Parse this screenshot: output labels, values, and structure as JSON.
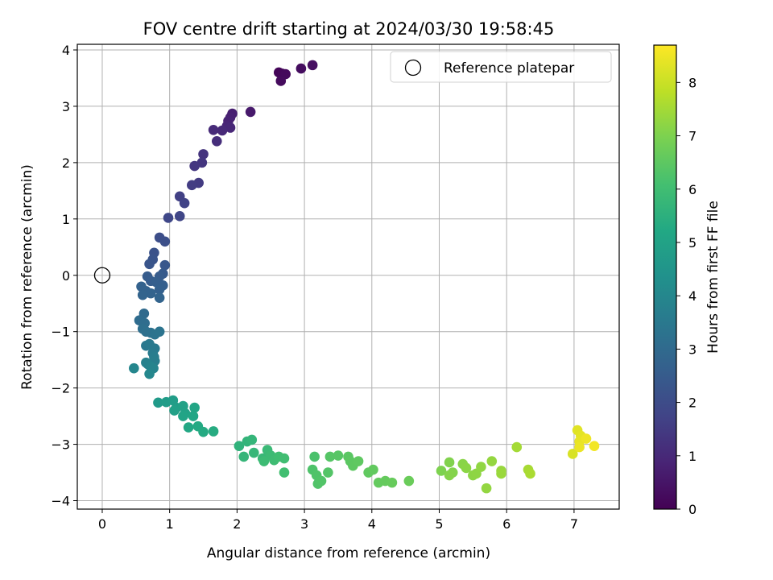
{
  "chart_data": {
    "type": "scatter",
    "title": "FOV centre drift starting at 2024/03/30 19:58:45",
    "xlabel": "Angular distance from reference (arcmin)",
    "ylabel": "Rotation from reference (arcmin)",
    "xlim": [
      -0.37,
      7.67
    ],
    "ylim": [
      -4.15,
      4.1
    ],
    "xticks": [
      0,
      1,
      2,
      3,
      4,
      5,
      6,
      7
    ],
    "yticks": [
      -4,
      -3,
      -2,
      -1,
      0,
      1,
      2,
      3,
      4
    ],
    "grid": true,
    "legend": {
      "label": "Reference platepar",
      "position": "top-right",
      "marker": "open-circle"
    },
    "reference_point": {
      "x": 0,
      "y": 0
    },
    "colorbar": {
      "label": "Hours from first FF file",
      "colormap": "viridis",
      "range": [
        0,
        8.7
      ],
      "ticks": [
        0,
        1,
        2,
        3,
        4,
        5,
        6,
        7,
        8
      ]
    },
    "points": [
      [
        2.62,
        3.6,
        0.1
      ],
      [
        2.67,
        3.58,
        0.15
      ],
      [
        2.72,
        3.57,
        0.2
      ],
      [
        2.65,
        3.45,
        0.25
      ],
      [
        2.95,
        3.67,
        0.3
      ],
      [
        3.12,
        3.73,
        0.35
      ],
      [
        2.2,
        2.9,
        0.6
      ],
      [
        1.93,
        2.87,
        0.75
      ],
      [
        1.9,
        2.8,
        0.8
      ],
      [
        1.87,
        2.74,
        0.85
      ],
      [
        1.85,
        2.65,
        0.9
      ],
      [
        1.9,
        2.62,
        0.95
      ],
      [
        1.78,
        2.57,
        1.0
      ],
      [
        1.65,
        2.58,
        1.05
      ],
      [
        1.7,
        2.38,
        1.15
      ],
      [
        1.5,
        2.15,
        1.3
      ],
      [
        1.48,
        2.0,
        1.35
      ],
      [
        1.37,
        1.94,
        1.4
      ],
      [
        1.43,
        1.64,
        1.5
      ],
      [
        1.33,
        1.6,
        1.55
      ],
      [
        1.15,
        1.4,
        1.65
      ],
      [
        1.22,
        1.28,
        1.7
      ],
      [
        1.15,
        1.05,
        1.8
      ],
      [
        0.98,
        1.02,
        1.85
      ],
      [
        0.85,
        0.67,
        2.05
      ],
      [
        0.93,
        0.6,
        2.1
      ],
      [
        0.77,
        0.4,
        2.2
      ],
      [
        0.75,
        0.28,
        2.25
      ],
      [
        0.7,
        0.2,
        2.3
      ],
      [
        0.93,
        0.18,
        2.35
      ],
      [
        0.9,
        0.03,
        2.45
      ],
      [
        0.85,
        -0.02,
        2.5
      ],
      [
        0.67,
        -0.02,
        2.52
      ],
      [
        0.72,
        -0.1,
        2.55
      ],
      [
        0.8,
        -0.12,
        2.6
      ],
      [
        0.9,
        -0.18,
        2.62
      ],
      [
        0.85,
        -0.25,
        2.65
      ],
      [
        0.58,
        -0.2,
        2.7
      ],
      [
        0.65,
        -0.28,
        2.72
      ],
      [
        0.72,
        -0.32,
        2.75
      ],
      [
        0.6,
        -0.35,
        2.78
      ],
      [
        0.85,
        -0.4,
        2.8
      ],
      [
        0.62,
        -0.68,
        3.0
      ],
      [
        0.55,
        -0.8,
        3.05
      ],
      [
        0.63,
        -0.85,
        3.1
      ],
      [
        0.6,
        -0.95,
        3.15
      ],
      [
        0.65,
        -1.0,
        3.2
      ],
      [
        0.72,
        -1.02,
        3.25
      ],
      [
        0.78,
        -1.05,
        3.3
      ],
      [
        0.85,
        -1.0,
        3.35
      ],
      [
        0.65,
        -1.25,
        3.45
      ],
      [
        0.7,
        -1.22,
        3.5
      ],
      [
        0.78,
        -1.3,
        3.55
      ],
      [
        0.75,
        -1.38,
        3.6
      ],
      [
        0.77,
        -1.45,
        3.65
      ],
      [
        0.78,
        -1.52,
        3.7
      ],
      [
        0.68,
        -1.58,
        3.75
      ],
      [
        0.65,
        -1.55,
        3.8
      ],
      [
        0.72,
        -1.62,
        3.85
      ],
      [
        0.76,
        -1.65,
        3.9
      ],
      [
        0.47,
        -1.65,
        3.95
      ],
      [
        0.7,
        -1.75,
        4.0
      ],
      [
        0.83,
        -2.26,
        4.7
      ],
      [
        0.95,
        -2.25,
        4.75
      ],
      [
        1.05,
        -2.22,
        4.8
      ],
      [
        1.1,
        -2.35,
        4.85
      ],
      [
        1.07,
        -2.4,
        4.9
      ],
      [
        1.2,
        -2.32,
        4.95
      ],
      [
        1.23,
        -2.45,
        5.0
      ],
      [
        1.2,
        -2.5,
        5.05
      ],
      [
        1.37,
        -2.35,
        5.1
      ],
      [
        1.35,
        -2.5,
        5.15
      ],
      [
        1.28,
        -2.7,
        5.2
      ],
      [
        1.42,
        -2.68,
        5.25
      ],
      [
        1.5,
        -2.78,
        5.3
      ],
      [
        1.65,
        -2.77,
        5.35
      ],
      [
        2.03,
        -3.03,
        5.6
      ],
      [
        2.15,
        -2.95,
        5.65
      ],
      [
        2.22,
        -2.92,
        5.7
      ],
      [
        2.1,
        -3.22,
        5.72
      ],
      [
        2.25,
        -3.15,
        5.75
      ],
      [
        2.38,
        -3.25,
        5.8
      ],
      [
        2.45,
        -3.1,
        5.85
      ],
      [
        2.5,
        -3.2,
        5.9
      ],
      [
        2.4,
        -3.3,
        5.92
      ],
      [
        2.55,
        -3.28,
        5.95
      ],
      [
        2.62,
        -3.22,
        6.0
      ],
      [
        2.7,
        -3.25,
        6.02
      ],
      [
        2.7,
        -3.5,
        6.05
      ],
      [
        3.15,
        -3.22,
        6.2
      ],
      [
        3.12,
        -3.45,
        6.25
      ],
      [
        3.18,
        -3.55,
        6.28
      ],
      [
        3.2,
        -3.7,
        6.3
      ],
      [
        3.25,
        -3.65,
        6.32
      ],
      [
        3.35,
        -3.5,
        6.35
      ],
      [
        3.38,
        -3.22,
        6.38
      ],
      [
        3.5,
        -3.2,
        6.4
      ],
      [
        3.65,
        -3.22,
        6.45
      ],
      [
        3.68,
        -3.3,
        6.48
      ],
      [
        3.72,
        -3.38,
        6.5
      ],
      [
        3.8,
        -3.3,
        6.52
      ],
      [
        3.95,
        -3.5,
        6.55
      ],
      [
        4.02,
        -3.45,
        6.58
      ],
      [
        4.1,
        -3.68,
        6.6
      ],
      [
        4.2,
        -3.65,
        6.62
      ],
      [
        4.3,
        -3.68,
        6.65
      ],
      [
        4.55,
        -3.65,
        6.7
      ],
      [
        5.03,
        -3.47,
        7.0
      ],
      [
        5.15,
        -3.32,
        7.05
      ],
      [
        5.2,
        -3.5,
        7.08
      ],
      [
        5.15,
        -3.55,
        7.1
      ],
      [
        5.35,
        -3.35,
        7.15
      ],
      [
        5.4,
        -3.42,
        7.18
      ],
      [
        5.5,
        -3.55,
        7.2
      ],
      [
        5.55,
        -3.52,
        7.22
      ],
      [
        5.62,
        -3.4,
        7.25
      ],
      [
        5.7,
        -3.78,
        7.28
      ],
      [
        5.78,
        -3.3,
        7.3
      ],
      [
        5.92,
        -3.47,
        7.35
      ],
      [
        5.92,
        -3.52,
        7.38
      ],
      [
        6.15,
        -3.05,
        7.5
      ],
      [
        6.32,
        -3.45,
        7.55
      ],
      [
        6.35,
        -3.52,
        7.58
      ],
      [
        6.98,
        -3.17,
        8.2
      ],
      [
        7.05,
        -2.75,
        8.3
      ],
      [
        7.1,
        -2.85,
        8.35
      ],
      [
        7.08,
        -2.95,
        8.4
      ],
      [
        7.08,
        -3.05,
        8.45
      ],
      [
        7.18,
        -2.9,
        8.5
      ],
      [
        7.3,
        -3.03,
        8.55
      ]
    ]
  }
}
